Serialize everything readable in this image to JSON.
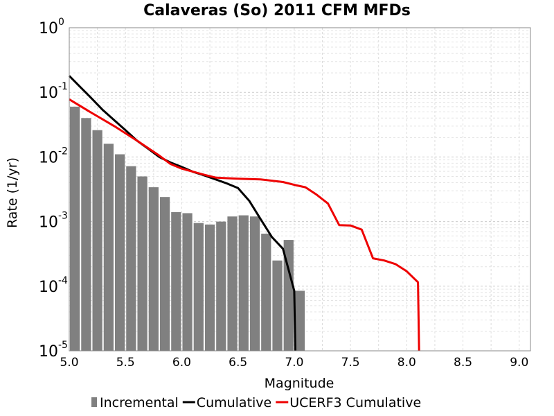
{
  "chart_data": {
    "type": "bar",
    "title": "Calaveras (So) 2011 CFM MFDs",
    "xlabel": "Magnitude",
    "ylabel": "Rate (1/yr)",
    "xlim": [
      5.0,
      9.1
    ],
    "ylim": [
      1e-05,
      1
    ],
    "yscale": "log",
    "grid": true,
    "legend_position": "bottom",
    "x_ticks": [
      "5.0",
      "5.5",
      "6.0",
      "6.5",
      "7.0",
      "7.5",
      "8.0",
      "8.5",
      "9.0"
    ],
    "y_ticks": [
      {
        "base": "10",
        "exp": "0",
        "value": 1
      },
      {
        "base": "10",
        "exp": "-1",
        "value": 0.1
      },
      {
        "base": "10",
        "exp": "-2",
        "value": 0.01
      },
      {
        "base": "10",
        "exp": "-3",
        "value": 0.001
      },
      {
        "base": "10",
        "exp": "-4",
        "value": 0.0001
      },
      {
        "base": "10",
        "exp": "-5",
        "value": 1e-05
      }
    ],
    "series": [
      {
        "name": "Incremental",
        "type": "bar",
        "color": "#808080",
        "x": [
          5.05,
          5.15,
          5.25,
          5.35,
          5.45,
          5.55,
          5.65,
          5.75,
          5.85,
          5.95,
          6.05,
          6.15,
          6.25,
          6.35,
          6.45,
          6.55,
          6.65,
          6.75,
          6.85,
          6.95,
          7.05
        ],
        "values": [
          0.06,
          0.04,
          0.026,
          0.016,
          0.011,
          0.0072,
          0.005,
          0.0034,
          0.0024,
          0.0014,
          0.00135,
          0.00095,
          0.0009,
          0.001,
          0.0012,
          0.00125,
          0.0012,
          0.00065,
          0.00025,
          0.00052,
          8.5e-05
        ]
      },
      {
        "name": "Cumulative",
        "type": "line",
        "color": "#000000",
        "x": [
          5.0,
          5.1,
          5.2,
          5.3,
          5.4,
          5.5,
          5.6,
          5.7,
          5.8,
          5.9,
          6.0,
          6.1,
          6.2,
          6.3,
          6.4,
          6.5,
          6.6,
          6.7,
          6.8,
          6.9,
          7.0,
          7.01
        ],
        "values": [
          0.18,
          0.12,
          0.08,
          0.053,
          0.037,
          0.026,
          0.018,
          0.0135,
          0.01,
          0.0082,
          0.007,
          0.0059,
          0.0052,
          0.0045,
          0.0039,
          0.0033,
          0.0021,
          0.0011,
          0.00058,
          0.00038,
          8.5e-05,
          1e-05
        ]
      },
      {
        "name": "UCERF3 Cumulative",
        "type": "line",
        "color": "#ee0000",
        "x": [
          5.0,
          5.2,
          5.4,
          5.6,
          5.8,
          5.9,
          6.0,
          6.2,
          6.3,
          6.4,
          6.5,
          6.7,
          6.9,
          7.0,
          7.1,
          7.2,
          7.3,
          7.4,
          7.5,
          7.6,
          7.7,
          7.8,
          7.9,
          8.0,
          8.1,
          8.11
        ],
        "values": [
          0.078,
          0.048,
          0.03,
          0.018,
          0.0105,
          0.0078,
          0.0066,
          0.0053,
          0.0048,
          0.0047,
          0.0046,
          0.0045,
          0.0041,
          0.0037,
          0.0034,
          0.0026,
          0.0019,
          0.00088,
          0.00087,
          0.00075,
          0.00027,
          0.00025,
          0.00022,
          0.00017,
          0.000115,
          1e-05
        ]
      }
    ]
  }
}
